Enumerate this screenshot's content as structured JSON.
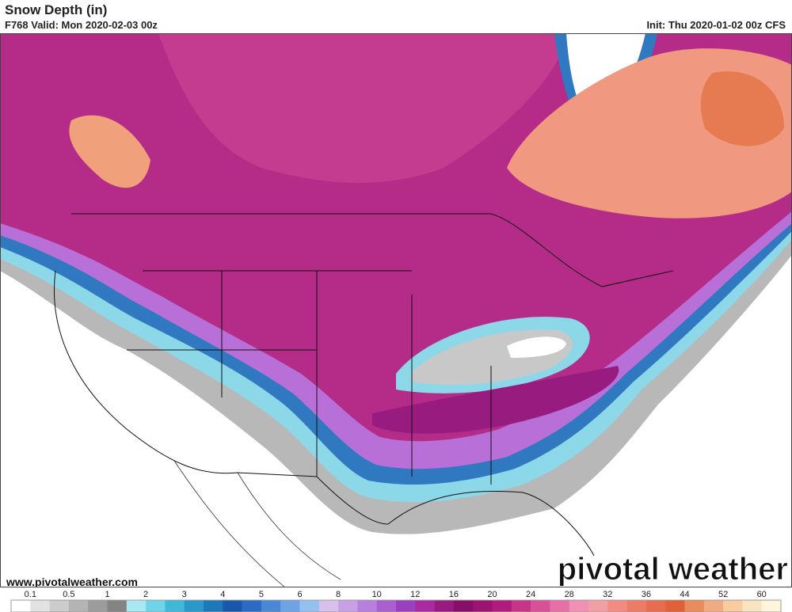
{
  "header": {
    "title": "Snow Depth (in)",
    "valid": "F768 Valid: Mon 2020-02-03 00z",
    "init": "Init: Thu 2020-01-02 00z CFS"
  },
  "footer": {
    "website": "www.pivotalweather.com",
    "logo": "pivotal weather"
  },
  "colorbar": {
    "ticks": [
      0.1,
      0.5,
      1,
      2,
      3,
      4,
      5,
      6,
      8,
      10,
      12,
      16,
      20,
      24,
      28,
      32,
      36,
      44,
      52,
      60
    ],
    "colors": [
      "#ffffff",
      "#e2e2e2",
      "#cccccc",
      "#b4b4b4",
      "#9c9c9c",
      "#848484",
      "#a8e8f0",
      "#70d4e8",
      "#40b8d8",
      "#2a98c8",
      "#1c78b8",
      "#1858a8",
      "#2a6cc4",
      "#4a88d4",
      "#6ea4e4",
      "#94c0f0",
      "#d8c0ec",
      "#c8a0e4",
      "#b880dc",
      "#a860d0",
      "#9840c0",
      "#a82ca0",
      "#981c80",
      "#841068",
      "#9a1470",
      "#b01c7c",
      "#c83488",
      "#d85098",
      "#e470a8",
      "#f090b4",
      "#f0a0a4",
      "#f08c84",
      "#ec7c68",
      "#e86c50",
      "#e06038",
      "#e88c5c",
      "#f0ac80",
      "#f8cca0",
      "#f8e4c0",
      "#fff4dc"
    ]
  }
}
